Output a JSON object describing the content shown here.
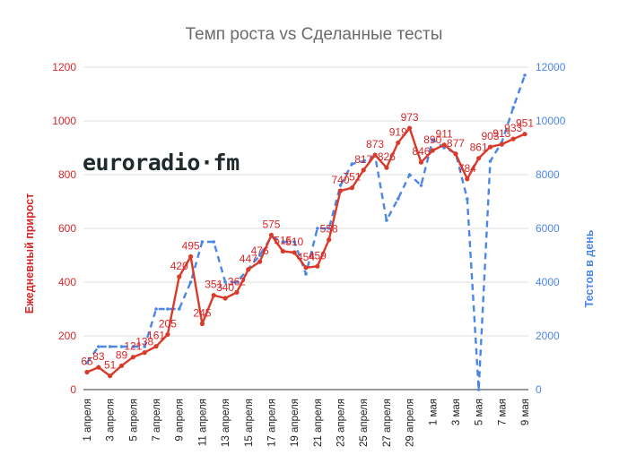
{
  "chart_data": {
    "type": "line",
    "title": "Темп роста vs Сделанные тесты",
    "y_left_label": "Ежедневный прирост",
    "y_right_label": "Тестов в день",
    "y_left_range": [
      0,
      1200
    ],
    "y_right_range": [
      0,
      12000
    ],
    "y_left_ticks": [
      "0",
      "200",
      "400",
      "600",
      "800",
      "1000",
      "1200"
    ],
    "y_right_ticks": [
      "0",
      "2000",
      "4000",
      "6000",
      "8000",
      "10000",
      "12000"
    ],
    "grid": true,
    "x_tick_labels": [
      "1 апреля",
      "3 апреля",
      "5 апреля",
      "7 апреля",
      "9 апреля",
      "11 апреля",
      "13 апреля",
      "15 апреля",
      "17 апреля",
      "19 апреля",
      "21 апреля",
      "23 апреля",
      "25 апреля",
      "27 апреля",
      "29 апреля",
      "1 мая",
      "3 мая",
      "5 мая",
      "7 мая",
      "9 мая"
    ],
    "x": [
      "1 апреля",
      "2 апреля",
      "3 апреля",
      "4 апреля",
      "5 апреля",
      "6 апреля",
      "7 апреля",
      "8 апреля",
      "9 апреля",
      "10 апреля",
      "11 апреля",
      "12 апреля",
      "13 апреля",
      "14 апреля",
      "15 апреля",
      "16 апреля",
      "17 апреля",
      "18 апреля",
      "19 апреля",
      "20 апреля",
      "21 апреля",
      "22 апреля",
      "23 апреля",
      "24 апреля",
      "25 апреля",
      "26 апреля",
      "27 апреля",
      "28 апреля",
      "29 апреля",
      "30 апреля",
      "1 мая",
      "2 мая",
      "3 мая",
      "4 мая",
      "5 мая",
      "6 мая",
      "7 мая",
      "8 мая",
      "9 мая"
    ],
    "series": [
      {
        "axis": "left",
        "color": "#d93b2b",
        "style": "solid",
        "values": [
          65,
          83,
          51,
          89,
          121,
          138,
          161,
          205,
          420,
          495,
          245,
          351,
          340,
          362,
          447,
          476,
          575,
          515,
          510,
          454,
          459,
          558,
          740,
          751,
          817,
          873,
          826,
          919,
          973,
          846,
          890,
          911,
          877,
          784,
          861,
          903,
          913,
          933,
          951
        ],
        "data_labels": [
          "65",
          "83",
          "51",
          "89",
          "121",
          "138",
          "161",
          "205",
          "420",
          "495",
          "245",
          "351",
          "340",
          "362",
          "447",
          "476",
          "575",
          "515",
          "510",
          "454",
          "459",
          "558",
          "740",
          "751",
          "817",
          "873",
          "826",
          "919",
          "973",
          "846",
          "890",
          "911",
          "877",
          "784",
          "861",
          "903",
          "913",
          "933",
          "951"
        ]
      },
      {
        "axis": "right",
        "color": "#4a86e8",
        "style": "dashed",
        "values": [
          1000,
          1600,
          1600,
          1600,
          1600,
          1600,
          3000,
          3000,
          3000,
          4000,
          5500,
          5500,
          4000,
          4000,
          4500,
          5000,
          5700,
          5500,
          5500,
          4300,
          6000,
          6000,
          7600,
          8400,
          8500,
          8700,
          6300,
          7100,
          8000,
          7600,
          9300,
          9000,
          8800,
          7100,
          0,
          8500,
          9200,
          10500,
          11700
        ]
      }
    ]
  },
  "logo": {
    "text": "euroradio·fm"
  }
}
